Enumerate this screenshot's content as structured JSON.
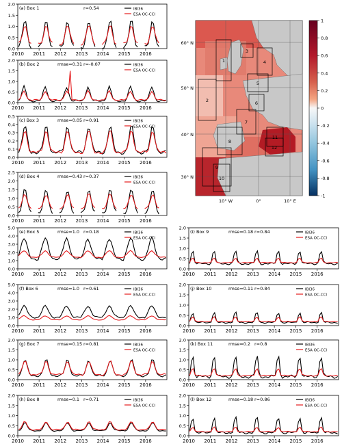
{
  "colors": {
    "ibi": "#000000",
    "esa": "#e41a1c",
    "land": "#c8c8c8",
    "grid": "#555555"
  },
  "chart_data": {
    "type": "line",
    "x_ticks": [
      "2010",
      "2011",
      "2012",
      "2013",
      "2014",
      "2015",
      "2016"
    ],
    "legend": [
      "IBI36",
      "ESA OC-CCI"
    ],
    "panels": [
      {
        "id": "a",
        "label": "(a) Box 1",
        "rmse": "",
        "r": "r=0.54",
        "ylim": [
          0,
          2.0
        ],
        "yticks": [
          "0.0",
          "0.5",
          "1.0",
          "1.5",
          "2.0"
        ],
        "kind": "patchy",
        "ibi": {
          "base": 0.05,
          "peak": 1.25
        },
        "esa": {
          "base": 0.2,
          "peak": 1.05
        }
      },
      {
        "id": "b",
        "label": "(b) Box 2",
        "rmse": "rmse=0.31",
        "r": "r=-0.07",
        "ylim": [
          0,
          2.0
        ],
        "yticks": [
          "0.0",
          "0.5",
          "1.0",
          "1.5",
          "2.0"
        ],
        "kind": "weak",
        "ibi": {
          "base": 0.08,
          "peak": 0.75
        },
        "esa": {
          "base": 0.12,
          "peak": 0.55
        }
      },
      {
        "id": "c",
        "label": "(c) Box 3",
        "rmse": "rmse=0.05",
        "r": "r=0.91",
        "ylim": [
          0,
          0.5
        ],
        "yticks": [
          "0.0",
          "0.1",
          "0.2",
          "0.3",
          "0.4",
          "0.5"
        ],
        "kind": "normal",
        "ibi": {
          "base": 0.06,
          "peak": 0.38
        },
        "esa": {
          "base": 0.06,
          "peak": 0.33
        }
      },
      {
        "id": "d",
        "label": "(d) Box 4",
        "rmse": "rmse=0.43",
        "r": "r=0.37",
        "ylim": [
          0,
          2.5
        ],
        "yticks": [
          "0.0",
          "0.5",
          "1.0",
          "1.5",
          "2.0",
          "2.5"
        ],
        "kind": "patchy",
        "ibi": {
          "base": 0.15,
          "peak": 1.5
        },
        "esa": {
          "base": 0.4,
          "peak": 1.25
        }
      },
      {
        "id": "e",
        "label": "(e) Box 5",
        "rmse": "rmse=1.0",
        "r": "r=0.18",
        "ylim": [
          0,
          5.0
        ],
        "yticks": [
          "0.0",
          "1.0",
          "2.0",
          "3.0",
          "4.0",
          "5.0"
        ],
        "kind": "plateau",
        "ibi": {
          "base": 1.2,
          "peak": 3.7
        },
        "esa": {
          "base": 1.4,
          "peak": 2.2
        }
      },
      {
        "id": "f",
        "label": "(f) Box 6",
        "rmse": "rmse=1.0",
        "r": "r=0.61",
        "ylim": [
          0,
          5.0
        ],
        "yticks": [
          "0.0",
          "1.0",
          "2.0",
          "3.0",
          "4.0",
          "5.0"
        ],
        "kind": "plateau",
        "ibi": {
          "base": 1.0,
          "peak": 2.4
        },
        "esa": {
          "base": 0.7,
          "peak": 1.2
        }
      },
      {
        "id": "g",
        "label": "(g) Box 7",
        "rmse": "rmse=0.15",
        "r": "r=0.81",
        "ylim": [
          0,
          2.0
        ],
        "yticks": [
          "0.0",
          "0.5",
          "1.0",
          "1.5",
          "2.0"
        ],
        "kind": "normal",
        "ibi": {
          "base": 0.2,
          "peak": 1.0
        },
        "esa": {
          "base": 0.25,
          "peak": 0.95
        }
      },
      {
        "id": "h",
        "label": "(h) Box 8",
        "rmse": "rmse=0.1",
        "r": "r=0.71",
        "ylim": [
          0,
          2.0
        ],
        "yticks": [
          "0.0",
          "0.5",
          "1.0",
          "1.5",
          "2.0"
        ],
        "kind": "normal",
        "ibi": {
          "base": 0.25,
          "peak": 0.65
        },
        "esa": {
          "base": 0.3,
          "peak": 0.7
        }
      },
      {
        "id": "i",
        "label": "(i) Box 9",
        "rmse": "rmse=0.18",
        "r": "r=0.84",
        "ylim": [
          0,
          2.0
        ],
        "yticks": [
          "0.0",
          "0.5",
          "1.0",
          "1.5",
          "2.0"
        ],
        "kind": "spiky",
        "ibi": {
          "base": 0.25,
          "peak": 0.95
        },
        "esa": {
          "base": 0.3,
          "peak": 0.55
        }
      },
      {
        "id": "j",
        "label": "(j) Box 10",
        "rmse": "rmse=0.11",
        "r": "r=0.84",
        "ylim": [
          0,
          2.0
        ],
        "yticks": [
          "0.0",
          "0.5",
          "1.0",
          "1.5",
          "2.0"
        ],
        "kind": "spiky",
        "ibi": {
          "base": 0.15,
          "peak": 0.7
        },
        "esa": {
          "base": 0.2,
          "peak": 0.45
        }
      },
      {
        "id": "k",
        "label": "(k) Box 11",
        "rmse": "rmse=0.2",
        "r": "r=0.8",
        "ylim": [
          0,
          2.0
        ],
        "yticks": [
          "0.0",
          "0.5",
          "1.0",
          "1.5",
          "2.0"
        ],
        "kind": "spiky",
        "ibi": {
          "base": 0.15,
          "peak": 1.3
        },
        "esa": {
          "base": 0.2,
          "peak": 0.6
        }
      },
      {
        "id": "l",
        "label": "(l) Box 12",
        "rmse": "rmse=0.18",
        "r": "r=0.86",
        "ylim": [
          0,
          2.0
        ],
        "yticks": [
          "0.0",
          "0.5",
          "1.0",
          "1.5",
          "2.0"
        ],
        "kind": "spiky",
        "ibi": {
          "base": 0.15,
          "peak": 1.0
        },
        "esa": {
          "base": 0.2,
          "peak": 0.45
        }
      }
    ],
    "map": {
      "lat_labels": [
        "60° N",
        "50° N",
        "40° N",
        "30° N"
      ],
      "lon_labels": [
        "10° W",
        "0°",
        "10° E"
      ],
      "colorbar_ticks": [
        "1",
        "0.8",
        "0.6",
        "0.4",
        "0.2",
        "0",
        "-0.2",
        "-0.4",
        "-0.6",
        "-0.8",
        "-1"
      ],
      "box_labels": [
        "1",
        "2",
        "3",
        "4",
        "5",
        "6",
        "7",
        "8",
        "9",
        "10",
        "11",
        "12"
      ]
    }
  }
}
